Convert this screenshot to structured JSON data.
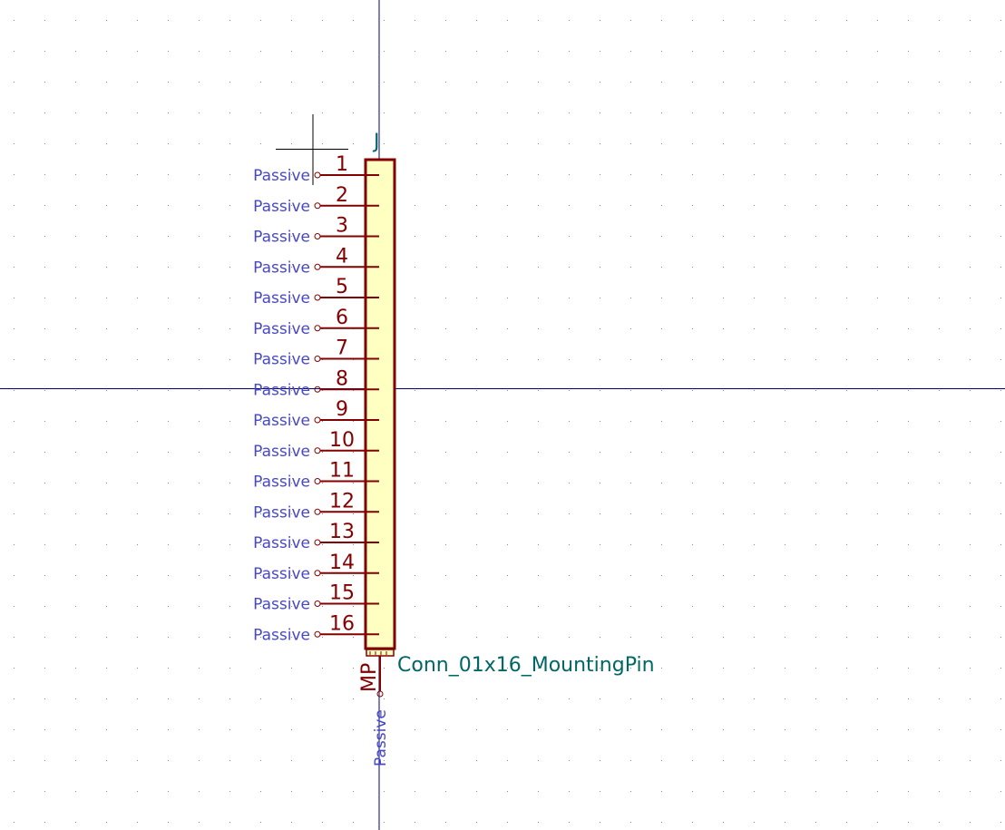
{
  "symbol": {
    "reference": "J",
    "value": "Conn_01x16_MountingPin",
    "pins": [
      {
        "number": "1",
        "type": "Passive"
      },
      {
        "number": "2",
        "type": "Passive"
      },
      {
        "number": "3",
        "type": "Passive"
      },
      {
        "number": "4",
        "type": "Passive"
      },
      {
        "number": "5",
        "type": "Passive"
      },
      {
        "number": "6",
        "type": "Passive"
      },
      {
        "number": "7",
        "type": "Passive"
      },
      {
        "number": "8",
        "type": "Passive"
      },
      {
        "number": "9",
        "type": "Passive"
      },
      {
        "number": "10",
        "type": "Passive"
      },
      {
        "number": "11",
        "type": "Passive"
      },
      {
        "number": "12",
        "type": "Passive"
      },
      {
        "number": "13",
        "type": "Passive"
      },
      {
        "number": "14",
        "type": "Passive"
      },
      {
        "number": "15",
        "type": "Passive"
      },
      {
        "number": "16",
        "type": "Passive"
      }
    ],
    "mounting_pin": {
      "number": "MP",
      "type": "Passive"
    }
  },
  "colors": {
    "body_fill": "#ffffc2",
    "body_stroke": "#840000",
    "pin_type_text": "#4747c9",
    "field_text": "#006666",
    "axis": "#00007f",
    "grid_dot": "#8a8a8a",
    "cursor": "#000000"
  }
}
